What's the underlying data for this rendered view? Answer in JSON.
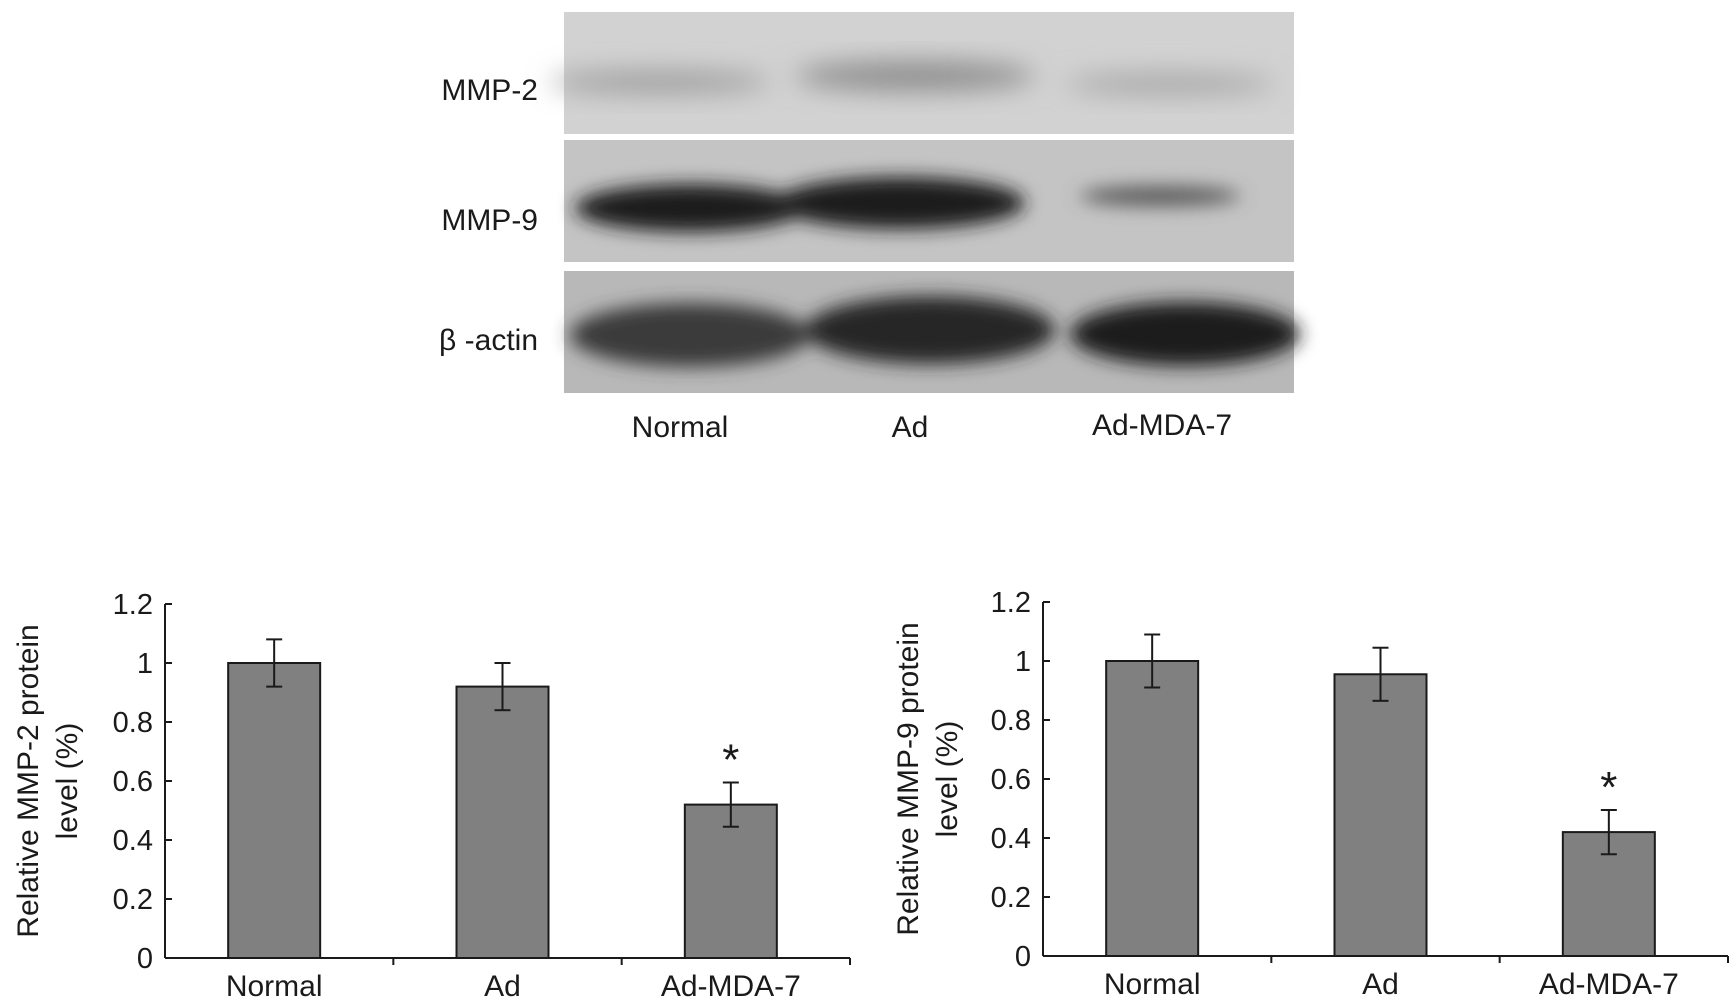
{
  "blot": {
    "rows": [
      {
        "label": "MMP-2"
      },
      {
        "label": "MMP-9"
      },
      {
        "label": "β -actin"
      }
    ],
    "lanes": [
      "Normal",
      "Ad",
      "Ad-MDA-7"
    ]
  },
  "chart_data": [
    {
      "type": "bar",
      "categories": [
        "Normal",
        "Ad",
        "Ad-MDA-7"
      ],
      "values": [
        1.0,
        0.92,
        0.52
      ],
      "errors": [
        0.08,
        0.08,
        0.075
      ],
      "annotations": [
        "",
        "",
        "*"
      ],
      "ylabel": [
        "Relative MMP-2 protein",
        "level (%)"
      ],
      "ylim": [
        0,
        1.2
      ],
      "yticks": [
        "0",
        "0.2",
        "0.4",
        "0.6",
        "0.8",
        "1",
        "1.2"
      ],
      "bar_color": "#808080"
    },
    {
      "type": "bar",
      "categories": [
        "Normal",
        "Ad",
        "Ad-MDA-7"
      ],
      "values": [
        1.0,
        0.955,
        0.42
      ],
      "errors": [
        0.09,
        0.09,
        0.075
      ],
      "annotations": [
        "",
        "",
        "*"
      ],
      "ylabel": [
        "Relative MMP-9 protein",
        "level (%)"
      ],
      "ylim": [
        0,
        1.2
      ],
      "yticks": [
        "0",
        "0.2",
        "0.4",
        "0.6",
        "0.8",
        "1",
        "1.2"
      ],
      "bar_color": "#808080"
    }
  ]
}
